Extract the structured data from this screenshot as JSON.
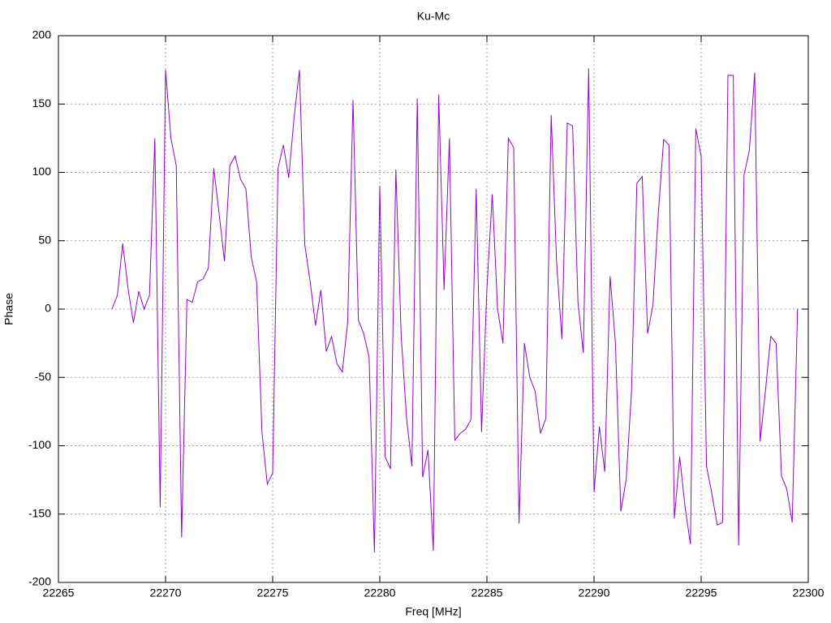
{
  "chart_data": {
    "type": "line",
    "title": "Ku-Mc",
    "x_label": "Freq [MHz]",
    "y_label": "Phase",
    "color": "#9400d3",
    "grid": true,
    "xlim": [
      22265,
      22300
    ],
    "xticks": [
      22265,
      22270,
      22275,
      22280,
      22285,
      22290,
      22295,
      22300
    ],
    "ylim": [
      -200,
      200
    ],
    "yticks": [
      -200,
      -150,
      -100,
      -50,
      0,
      50,
      100,
      150,
      200
    ],
    "x": [
      22267.5,
      22267.75,
      22268,
      22268.25,
      22268.5,
      22268.75,
      22269,
      22269.25,
      22269.5,
      22269.75,
      22270,
      22270.25,
      22270.5,
      22270.75,
      22271,
      22271.25,
      22271.5,
      22271.75,
      22272,
      22272.25,
      22272.5,
      22272.75,
      22273,
      22273.25,
      22273.5,
      22273.75,
      22274,
      22274.25,
      22274.5,
      22274.75,
      22275,
      22275.25,
      22275.5,
      22275.75,
      22276,
      22276.25,
      22276.5,
      22276.75,
      22277,
      22277.25,
      22277.5,
      22277.75,
      22278,
      22278.25,
      22278.5,
      22278.75,
      22279,
      22279.25,
      22279.5,
      22279.75,
      22280,
      22280.25,
      22280.5,
      22280.75,
      22281,
      22281.25,
      22281.5,
      22281.75,
      22282,
      22282.25,
      22282.5,
      22282.75,
      22283,
      22283.25,
      22283.5,
      22283.75,
      22284,
      22284.25,
      22284.5,
      22284.75,
      22285,
      22285.25,
      22285.5,
      22285.75,
      22286,
      22286.25,
      22286.5,
      22286.75,
      22287,
      22287.25,
      22287.5,
      22287.75,
      22288,
      22288.25,
      22288.5,
      22288.75,
      22289,
      22289.25,
      22289.5,
      22289.75,
      22290,
      22290.25,
      22290.5,
      22290.75,
      22291,
      22291.25,
      22291.5,
      22291.75,
      22292,
      22292.25,
      22292.5,
      22292.75,
      22293,
      22293.25,
      22293.5,
      22293.75,
      22294,
      22294.25,
      22294.5,
      22294.75,
      22295,
      22295.25,
      22295.5,
      22295.75,
      22296,
      22296.25,
      22296.5,
      22296.75,
      22297,
      22297.25,
      22297.5,
      22297.75,
      22298,
      22298.25,
      22298.5,
      22298.75,
      22299,
      22299.25,
      22299.5
    ],
    "values": [
      0,
      10,
      48,
      15,
      -10,
      13,
      0,
      10,
      125,
      -145,
      175,
      125,
      105,
      -167,
      7,
      5,
      20,
      22,
      30,
      103,
      70,
      35,
      105,
      112,
      95,
      88,
      38,
      20,
      -90,
      -128,
      -120,
      103,
      120,
      96,
      140,
      175,
      47,
      20,
      -12,
      14,
      -31,
      -20,
      -40,
      -46,
      -10,
      153,
      -8,
      -18,
      -35,
      -178,
      90,
      -108,
      -117,
      102,
      -20,
      -80,
      -115,
      154,
      -123,
      -103,
      -177,
      157,
      14,
      125,
      -96,
      -91,
      -88,
      -81,
      88,
      -90,
      15,
      84,
      0,
      -25,
      125,
      118,
      -157,
      -25,
      -50,
      -60,
      -91,
      -80,
      142,
      35,
      -22,
      136,
      134,
      5,
      -32,
      176,
      -134,
      -86,
      -119,
      24,
      -25,
      -148,
      -125,
      -60,
      92,
      97,
      -18,
      3,
      70,
      124,
      120,
      -153,
      -108,
      -145,
      -172,
      132,
      112,
      -115,
      -135,
      -158,
      -156,
      171,
      171,
      -173,
      98,
      116,
      173,
      -97,
      -60,
      -20,
      -25,
      -122,
      -132,
      -156,
      0
    ]
  }
}
